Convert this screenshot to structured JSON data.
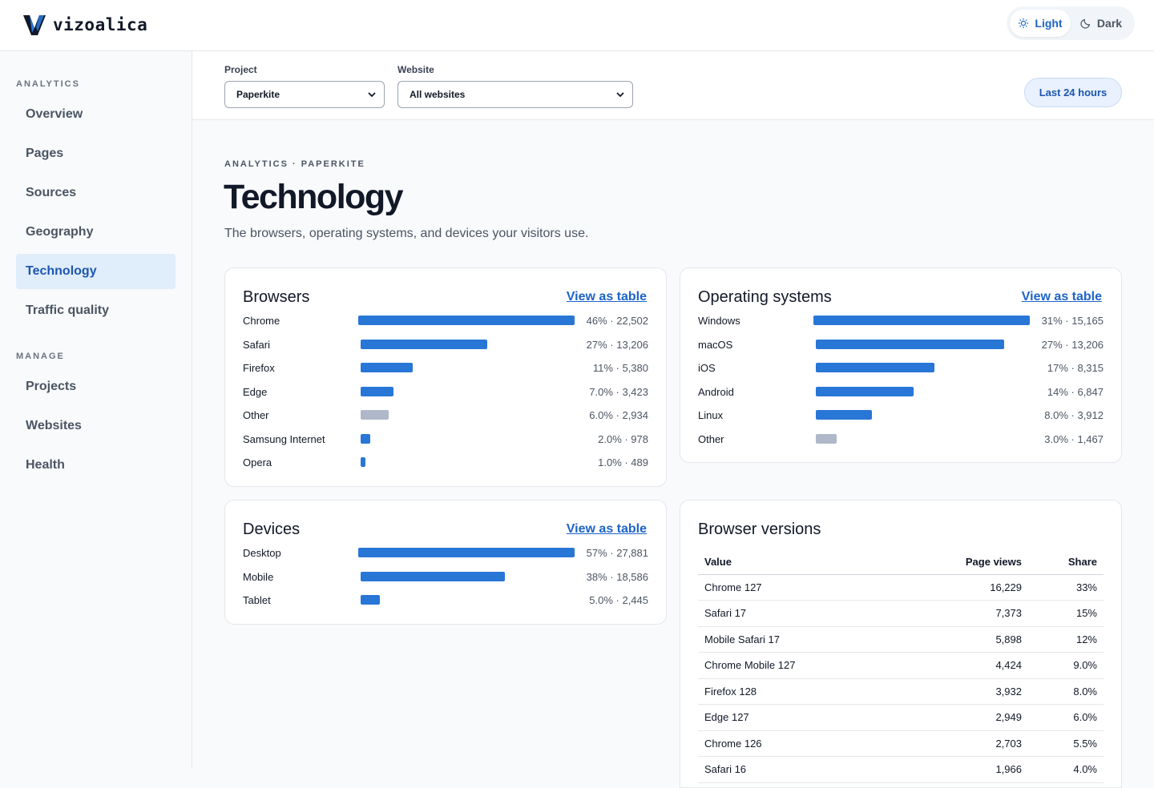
{
  "brand": {
    "name": "vizoalica"
  },
  "theme": {
    "light_label": "Light",
    "dark_label": "Dark",
    "active": "Light"
  },
  "sidebar": {
    "sections": [
      {
        "title": "ANALYTICS",
        "items": [
          "Overview",
          "Pages",
          "Sources",
          "Geography",
          "Technology",
          "Traffic quality"
        ]
      },
      {
        "title": "MANAGE",
        "items": [
          "Projects",
          "Websites",
          "Health"
        ]
      }
    ],
    "active_item": "Technology"
  },
  "filters": {
    "project_label": "Project",
    "project_value": "Paperkite",
    "website_label": "Website",
    "website_value": "All websites",
    "range_label": "Last 24 hours"
  },
  "page": {
    "breadcrumb": "ANALYTICS · PAPERKITE",
    "title": "Technology",
    "subtitle": "The browsers, operating systems, and devices your visitors use."
  },
  "colors": {
    "bar": "#2876d6",
    "bar_other": "#aeb8c8",
    "accent": "#1d64c9",
    "active_nav_bg": "#e0edfb"
  },
  "cards": {
    "browsers": {
      "title": "Browsers",
      "link": "View as table",
      "rows": [
        {
          "label": "Chrome",
          "share": 0.46,
          "value": "46% · 22,502"
        },
        {
          "label": "Safari",
          "share": 0.27,
          "value": "27% · 13,206"
        },
        {
          "label": "Firefox",
          "share": 0.11,
          "value": "11% · 5,380"
        },
        {
          "label": "Edge",
          "share": 0.07,
          "value": "7.0% · 3,423"
        },
        {
          "label": "Other",
          "share": 0.06,
          "value": "6.0% · 2,934"
        },
        {
          "label": "Samsung Internet",
          "share": 0.02,
          "value": "2.0% · 978"
        },
        {
          "label": "Opera",
          "share": 0.01,
          "value": "1.0% · 489"
        }
      ]
    },
    "os": {
      "title": "Operating systems",
      "link": "View as table",
      "rows": [
        {
          "label": "Windows",
          "share": 0.31,
          "value": "31% · 15,165"
        },
        {
          "label": "macOS",
          "share": 0.27,
          "value": "27% · 13,206"
        },
        {
          "label": "iOS",
          "share": 0.17,
          "value": "17% · 8,315"
        },
        {
          "label": "Android",
          "share": 0.14,
          "value": "14% · 6,847"
        },
        {
          "label": "Linux",
          "share": 0.08,
          "value": "8.0% · 3,912"
        },
        {
          "label": "Other",
          "share": 0.03,
          "value": "3.0% · 1,467"
        }
      ]
    },
    "devices": {
      "title": "Devices",
      "link": "View as table",
      "rows": [
        {
          "label": "Desktop",
          "share": 0.57,
          "value": "57% · 27,881"
        },
        {
          "label": "Mobile",
          "share": 0.38,
          "value": "38% · 18,586"
        },
        {
          "label": "Tablet",
          "share": 0.05,
          "value": "5.0% · 2,445"
        }
      ]
    },
    "versions": {
      "title": "Browser versions",
      "columns": [
        "Value",
        "Page views",
        "Share"
      ],
      "rows": [
        [
          "Chrome 127",
          "16,229",
          "33%"
        ],
        [
          "Safari 17",
          "7,373",
          "15%"
        ],
        [
          "Mobile Safari 17",
          "5,898",
          "12%"
        ],
        [
          "Chrome Mobile 127",
          "4,424",
          "9.0%"
        ],
        [
          "Firefox 128",
          "3,932",
          "8.0%"
        ],
        [
          "Edge 127",
          "2,949",
          "6.0%"
        ],
        [
          "Chrome 126",
          "2,703",
          "5.5%"
        ],
        [
          "Safari 16",
          "1,966",
          "4.0%"
        ]
      ]
    }
  }
}
